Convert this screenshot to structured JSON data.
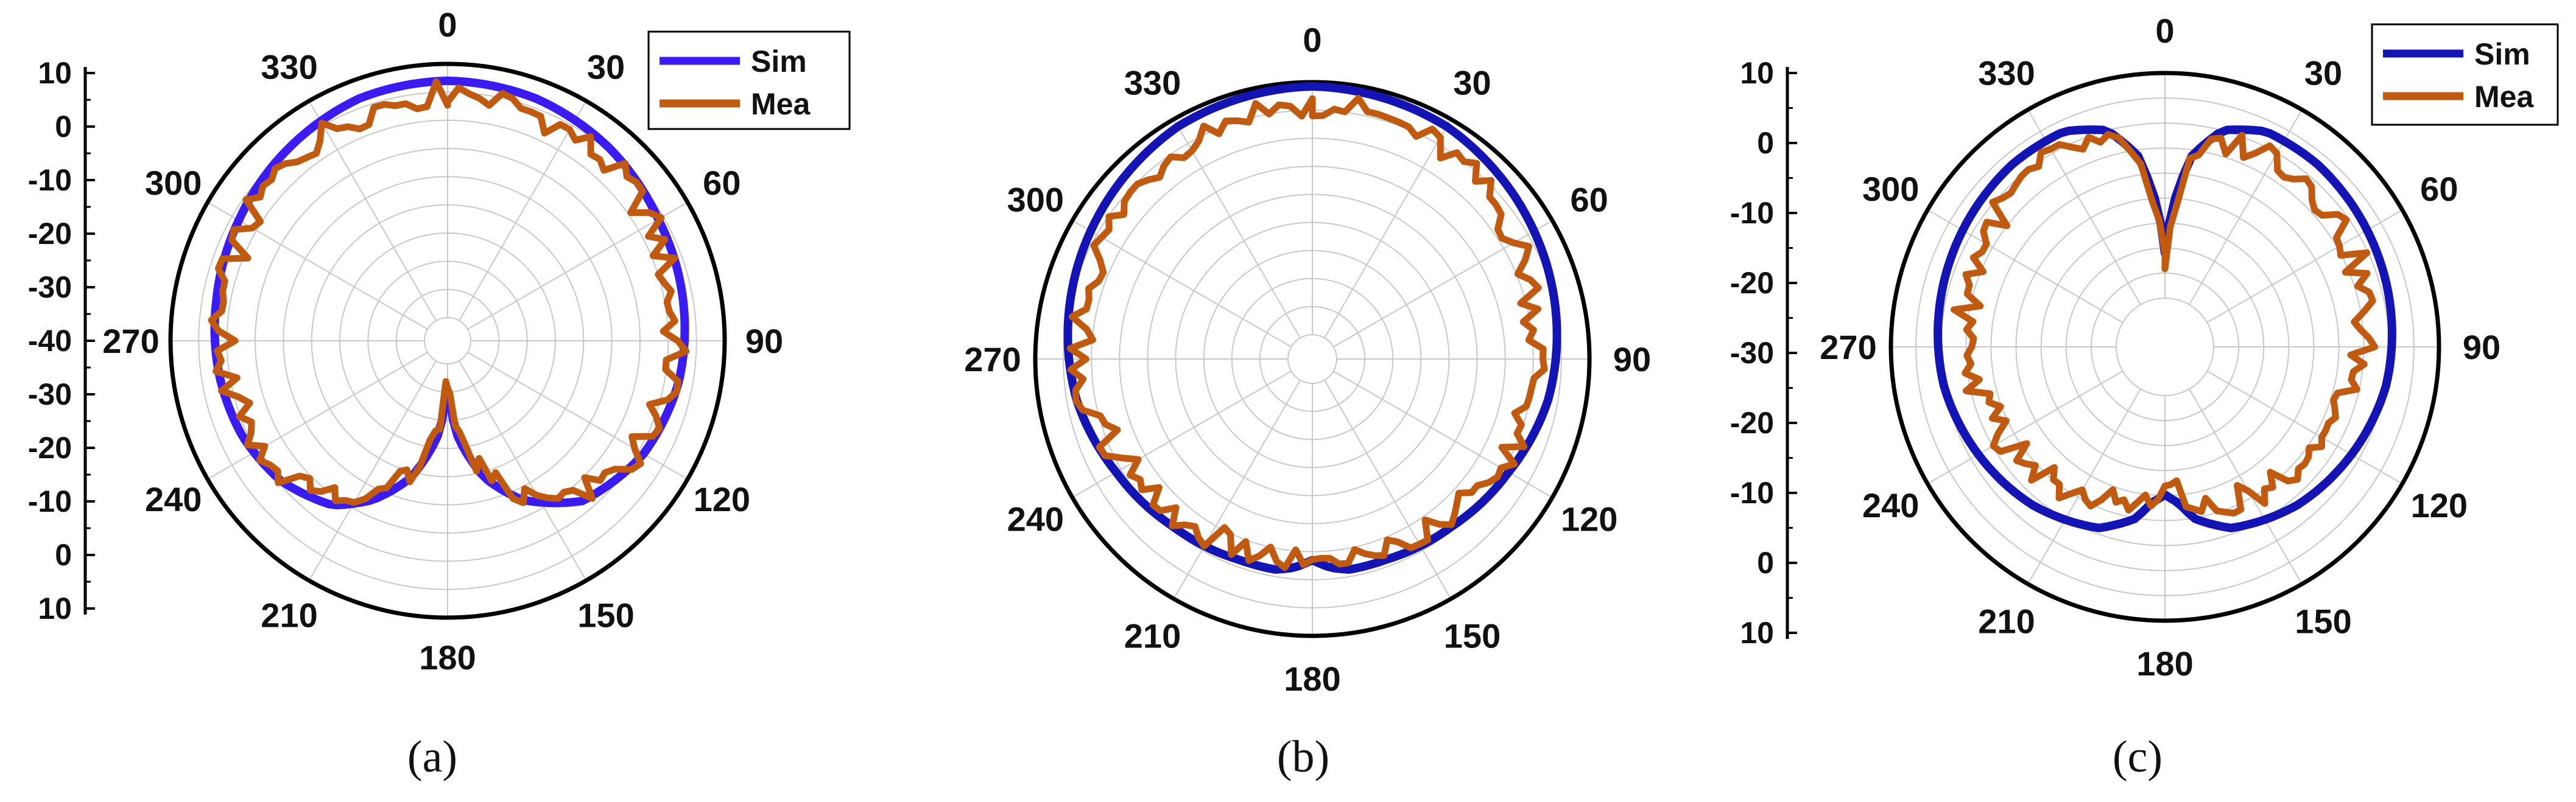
{
  "colors": {
    "sim_a": "#3a1cf2",
    "sim_bc": "#1414b4",
    "mea": "#c05a10",
    "grid": "#c8c8c8",
    "axis": "#000000"
  },
  "chart_data": [
    {
      "type": "polar",
      "panel": "(a)",
      "angle_labels": [
        "0",
        "30",
        "60",
        "90",
        "120",
        "150",
        "180",
        "210",
        "240",
        "270",
        "300",
        "330"
      ],
      "r_tick_labels": [
        "10",
        "0",
        "-10",
        "-20",
        "-30",
        "-40",
        "-30",
        "-20",
        "-10",
        "0",
        "10"
      ],
      "r_range": [
        -50,
        10
      ],
      "legend": [
        "Sim",
        "Mea"
      ],
      "legend_position": "top-right",
      "grid": true,
      "series": [
        {
          "name": "Sim",
          "theta": [
            0,
            20,
            40,
            60,
            80,
            100,
            120,
            140,
            155,
            165,
            170,
            175,
            178,
            182,
            185,
            190,
            195,
            205,
            215,
            230,
            245,
            260,
            280,
            300,
            320,
            340,
            360
          ],
          "r": [
            6,
            5.5,
            4,
            2,
            1,
            0,
            -2,
            -6,
            -14,
            -22,
            -28,
            -34,
            -42,
            -42,
            -34,
            -28,
            -22,
            -14,
            -8,
            -4,
            -2,
            -1,
            0,
            1.5,
            3.5,
            5.5,
            6
          ]
        },
        {
          "name": "Mea",
          "theta": [
            0,
            20,
            40,
            60,
            80,
            100,
            120,
            140,
            155,
            165,
            170,
            175,
            178,
            182,
            185,
            190,
            195,
            205,
            215,
            230,
            245,
            260,
            280,
            300,
            320,
            340,
            360
          ],
          "r": [
            3,
            2,
            1,
            0,
            -2,
            -2,
            -4,
            -8,
            -16,
            -24,
            -30,
            -36,
            -44,
            -44,
            -36,
            -30,
            -24,
            -16,
            -10,
            -6,
            -4,
            -3,
            -2,
            -1,
            1,
            2,
            3
          ]
        }
      ]
    },
    {
      "type": "polar",
      "panel": "(b)",
      "angle_labels": [
        "0",
        "30",
        "60",
        "90",
        "120",
        "150",
        "180",
        "210",
        "240",
        "270",
        "300",
        "330"
      ],
      "r_range": [
        -50,
        10
      ],
      "grid": true,
      "series": [
        {
          "name": "Sim",
          "theta": [
            0,
            30,
            60,
            80,
            100,
            120,
            140,
            160,
            170,
            175,
            180,
            185,
            190,
            200,
            220,
            240,
            260,
            280,
            300,
            330,
            360
          ],
          "r": [
            9,
            8,
            5,
            3,
            1,
            -2,
            -4,
            -5,
            -5,
            -6,
            -8,
            -6,
            -5,
            -5,
            -4,
            -2,
            1,
            3,
            5,
            8,
            9
          ]
        },
        {
          "name": "Mea",
          "theta": [
            0,
            30,
            60,
            80,
            100,
            120,
            140,
            160,
            170,
            175,
            180,
            185,
            190,
            200,
            220,
            240,
            260,
            280,
            300,
            330,
            360
          ],
          "r": [
            5,
            3,
            0,
            -2,
            -3,
            -5,
            -7,
            -8,
            -8,
            -9,
            -10,
            -9,
            -8,
            -8,
            -7,
            -5,
            -2,
            0,
            1,
            4,
            5
          ]
        }
      ]
    },
    {
      "type": "polar",
      "panel": "(c)",
      "angle_labels": [
        "0",
        "30",
        "60",
        "90",
        "120",
        "150",
        "180",
        "210",
        "240",
        "270",
        "300",
        "330"
      ],
      "r_tick_labels": [
        "10",
        "0",
        "-10",
        "-20",
        "-30",
        "-20",
        "-10",
        "0",
        "10"
      ],
      "r_range": [
        -40,
        10
      ],
      "legend": [
        "Sim",
        "Mea"
      ],
      "legend_position": "top-right",
      "grid": true,
      "series": [
        {
          "name": "Sim",
          "theta": [
            0,
            3,
            8,
            15,
            25,
            40,
            60,
            80,
            100,
            120,
            140,
            160,
            170,
            175,
            180,
            185,
            190,
            200,
            220,
            240,
            260,
            280,
            300,
            320,
            335,
            345,
            352,
            357,
            360
          ],
          "r": [
            -30,
            -20,
            -8,
            -1,
            2,
            2,
            1,
            0,
            -1,
            -3,
            -5,
            -8,
            -12,
            -16,
            -18,
            -16,
            -12,
            -8,
            -5,
            -3,
            -1,
            0,
            1,
            2,
            2,
            -1,
            -8,
            -20,
            -30
          ]
        },
        {
          "name": "Mea",
          "theta": [
            0,
            3,
            8,
            15,
            25,
            40,
            60,
            80,
            100,
            120,
            140,
            160,
            170,
            175,
            180,
            185,
            190,
            200,
            220,
            240,
            260,
            280,
            300,
            320,
            335,
            345,
            352,
            357,
            360
          ],
          "r": [
            -32,
            -22,
            -10,
            -4,
            -2,
            -2,
            -4,
            -6,
            -8,
            -10,
            -12,
            -14,
            -16,
            -18,
            -20,
            -18,
            -16,
            -14,
            -12,
            -10,
            -8,
            -6,
            -4,
            -3,
            -2,
            -4,
            -10,
            -22,
            -32
          ]
        }
      ]
    }
  ],
  "captions": [
    "(a)",
    "(b)",
    "(c)"
  ]
}
